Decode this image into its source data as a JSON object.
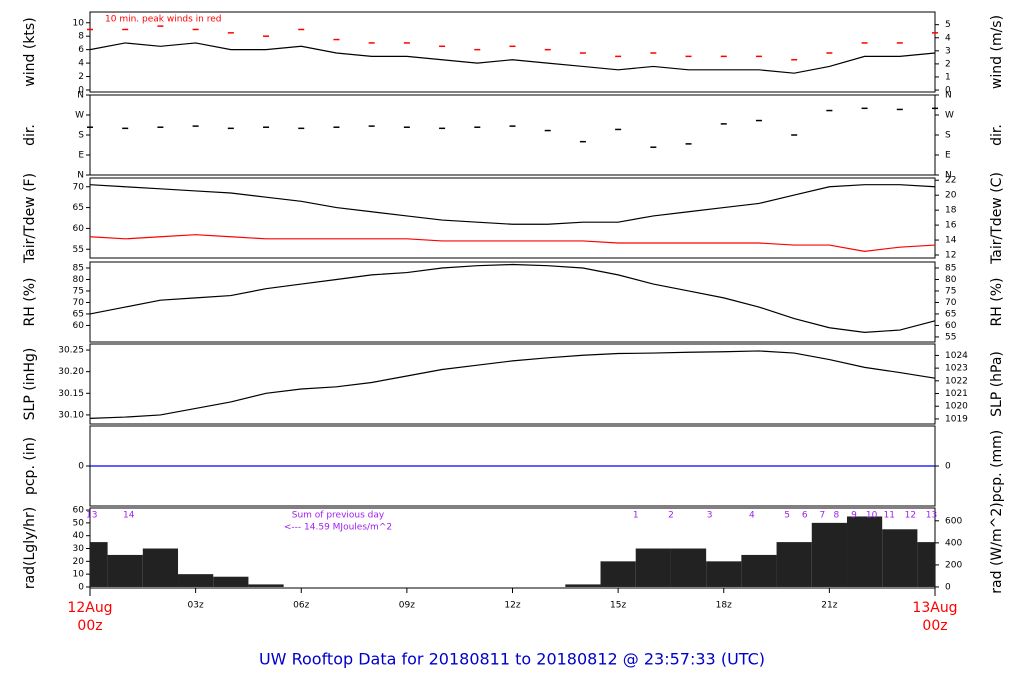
{
  "title": "UW Rooftop Data for 20180811  to  20180812 @ 23:57:33  (UTC)",
  "x_axis": {
    "xlim": [
      0,
      24
    ],
    "x": [
      0,
      1,
      2,
      3,
      4,
      5,
      6,
      7,
      8,
      9,
      10,
      11,
      12,
      13,
      14,
      15,
      16,
      17,
      18,
      19,
      20,
      21,
      22,
      23,
      24
    ],
    "xticks": [
      {
        "value": 3,
        "label": "03z"
      },
      {
        "value": 6,
        "label": "06z"
      },
      {
        "value": 9,
        "label": "09z"
      },
      {
        "value": 12,
        "label": "12z"
      },
      {
        "value": 15,
        "label": "15z"
      },
      {
        "value": 18,
        "label": "18z"
      },
      {
        "value": 21,
        "label": "21z"
      }
    ],
    "start_label": {
      "value": 0,
      "date": "12Aug",
      "time": "00z"
    },
    "end_label": {
      "value": 24,
      "date": "13Aug",
      "time": "00z"
    },
    "label_color": "#ff0000"
  },
  "chart_data": [
    {
      "type": "line",
      "ylabel": "wind (kts)",
      "y2label": "wind (m/s)",
      "ylim": [
        -0.3,
        11.6
      ],
      "yticks": [
        0,
        2,
        4,
        6,
        8,
        10
      ],
      "y2lim": [
        -0.15,
        5.97
      ],
      "y2ticks": [
        0,
        1,
        2,
        3,
        4,
        5
      ],
      "annotations": [
        "10 min. peak winds in red"
      ],
      "annotation_color": "#ff0000",
      "series": [
        {
          "color": "#000000",
          "values": [
            6,
            7,
            6.5,
            7,
            6,
            6,
            6.5,
            5.5,
            5,
            5,
            4.5,
            4,
            4.5,
            4,
            3.5,
            3,
            3.5,
            3,
            3,
            3,
            2.5,
            3.5,
            5,
            5,
            5.5
          ]
        },
        {
          "color": "#ff0000",
          "mark": "dash",
          "values": [
            9,
            9,
            9.5,
            9,
            8.5,
            8,
            9,
            7.5,
            7,
            7,
            6.5,
            6,
            6.5,
            6,
            5.5,
            5,
            5.5,
            5,
            5,
            5,
            4.5,
            5.5,
            7,
            7,
            8.5
          ]
        }
      ]
    },
    {
      "type": "scatter",
      "ylabel": "dir.",
      "y2label": "dir.",
      "ylim": [
        0,
        360
      ],
      "yticks": [
        {
          "value": 0,
          "label": "N"
        },
        {
          "value": 90,
          "label": "E"
        },
        {
          "value": 180,
          "label": "S"
        },
        {
          "value": 270,
          "label": "W"
        },
        {
          "value": 360,
          "label": "N"
        }
      ],
      "y2lim": [
        0,
        360
      ],
      "y2ticks": [
        {
          "value": 0,
          "label": "N"
        },
        {
          "value": 90,
          "label": "E"
        },
        {
          "value": 180,
          "label": "S"
        },
        {
          "value": 270,
          "label": "W"
        },
        {
          "value": 360,
          "label": "N"
        }
      ],
      "series": [
        {
          "color": "#000000",
          "values": [
            215,
            210,
            215,
            220,
            210,
            215,
            210,
            215,
            220,
            215,
            210,
            215,
            220,
            200,
            150,
            205,
            125,
            140,
            230,
            245,
            180,
            290,
            300,
            295,
            300
          ]
        }
      ]
    },
    {
      "type": "line",
      "ylabel": "Tair/Tdew (F)",
      "y2label": "Tair/Tdew (C)",
      "ylim": [
        52.9,
        72.1
      ],
      "yticks": [
        55,
        60,
        65,
        70
      ],
      "y2lim": [
        11.6,
        22.3
      ],
      "y2ticks": [
        12,
        14,
        16,
        18,
        20,
        22
      ],
      "series": [
        {
          "color": "#000000",
          "values": [
            70.5,
            70,
            69.5,
            69,
            68.5,
            67.5,
            66.5,
            65,
            64,
            63,
            62,
            61.5,
            61,
            61,
            61.5,
            61.5,
            63,
            64,
            65,
            66,
            68,
            70,
            70.5,
            70.5,
            70
          ]
        },
        {
          "color": "#ff0000",
          "values": [
            58,
            57.5,
            58,
            58.5,
            58,
            57.5,
            57.5,
            57.5,
            57.5,
            57.5,
            57,
            57,
            57,
            57,
            57,
            56.5,
            56.5,
            56.5,
            56.5,
            56.5,
            56,
            56,
            54.5,
            55.5,
            56
          ]
        }
      ]
    },
    {
      "type": "line",
      "ylabel": "RH (%)",
      "y2label": "RH (%)",
      "ylim": [
        52.8,
        87.6
      ],
      "yticks": [
        60,
        65,
        70,
        75,
        80,
        85
      ],
      "y2lim": [
        52.8,
        87.6
      ],
      "y2ticks": [
        55,
        60,
        65,
        70,
        75,
        80,
        85
      ],
      "series": [
        {
          "color": "#000000",
          "values": [
            65,
            68,
            71,
            72,
            73,
            76,
            78,
            80,
            82,
            83,
            85,
            86,
            86.5,
            86,
            85,
            82,
            78,
            75,
            72,
            68,
            63,
            59,
            57,
            58,
            62
          ]
        }
      ]
    },
    {
      "type": "line",
      "ylabel": "SLP (inHg)",
      "y2label": "SLP (hPa)",
      "ylim": [
        30.079,
        30.264
      ],
      "yticks": [
        {
          "value": 30.1,
          "label": "30.10"
        },
        30.15,
        {
          "value": 30.2,
          "label": "30.20"
        },
        30.25
      ],
      "y2lim": [
        1018.6,
        1024.9
      ],
      "y2ticks": [
        1019,
        1020,
        1021,
        1022,
        1023,
        1024
      ],
      "series": [
        {
          "color": "#000000",
          "values": [
            30.092,
            30.095,
            30.1,
            30.115,
            30.13,
            30.15,
            30.16,
            30.165,
            30.175,
            30.19,
            30.205,
            30.215,
            30.225,
            30.232,
            30.238,
            30.242,
            30.243,
            30.245,
            30.246,
            30.248,
            30.243,
            30.228,
            30.21,
            30.198,
            30.185
          ]
        }
      ]
    },
    {
      "type": "line",
      "ylabel": "pcp. (in)",
      "y2label": "pcp. (mm)",
      "ylim": [
        -1,
        1
      ],
      "yticks": [
        0
      ],
      "y2lim": [
        -1,
        1
      ],
      "y2ticks": [
        0
      ],
      "series": [
        {
          "color": "#0000ff",
          "values": [
            0,
            0,
            0,
            0,
            0,
            0,
            0,
            0,
            0,
            0,
            0,
            0,
            0,
            0,
            0,
            0,
            0,
            0,
            0,
            0,
            0,
            0,
            0,
            0,
            0
          ]
        }
      ]
    },
    {
      "type": "bar",
      "ylabel": "rad(Lgly/hr)",
      "y2label": "rad (W/m^2)",
      "ylim": [
        -0.8,
        61.6
      ],
      "yticks": [
        0,
        10,
        20,
        30,
        40,
        50,
        60
      ],
      "y2lim": [
        -9.3,
        716
      ],
      "y2ticks": [
        0,
        200,
        400,
        600
      ],
      "annotations": [
        "Sum of previous day",
        "<--- 14.59 MJoules/m^2"
      ],
      "annotation_color": "#a020f0",
      "hour_marks": {
        "x": [
          0.05,
          1.1,
          15.5,
          16.5,
          17.6,
          18.8,
          19.8,
          20.3,
          20.8,
          21.2,
          21.7,
          22.2,
          22.7,
          23.3,
          23.9
        ],
        "labels": [
          "13",
          "14",
          "1",
          "2",
          "3",
          "4",
          "5",
          "6",
          "7",
          "8",
          "9",
          "10",
          "11",
          "12",
          "13"
        ]
      },
      "series": [
        {
          "color": "#222222",
          "values": [
            35,
            25,
            30,
            10,
            8,
            2,
            0,
            0,
            0,
            0,
            0,
            0,
            0,
            0,
            2,
            20,
            30,
            30,
            20,
            25,
            35,
            50,
            55,
            45,
            35
          ]
        }
      ]
    }
  ]
}
